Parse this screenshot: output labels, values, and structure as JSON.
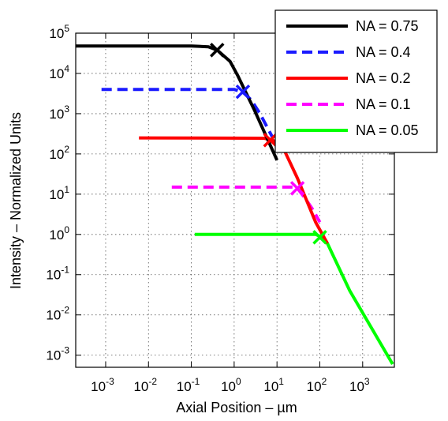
{
  "chart_data": {
    "type": "line",
    "xscale": "log",
    "yscale": "log",
    "xlabel": "Axial Position – µm",
    "ylabel": "Intensity – Normalized Units",
    "xlim": [
      0.0002,
      5500
    ],
    "ylim": [
      0.0005,
      100000
    ],
    "x_ticks": [
      {
        "base": "10",
        "exp": "-3",
        "value": 0.001
      },
      {
        "base": "10",
        "exp": "-2",
        "value": 0.01
      },
      {
        "base": "10",
        "exp": "-1",
        "value": 0.1
      },
      {
        "base": "10",
        "exp": "0",
        "value": 1
      },
      {
        "base": "10",
        "exp": "1",
        "value": 10
      },
      {
        "base": "10",
        "exp": "2",
        "value": 100
      },
      {
        "base": "10",
        "exp": "3",
        "value": 1000
      }
    ],
    "y_ticks": [
      {
        "base": "10",
        "exp": "-3",
        "value": 0.001
      },
      {
        "base": "10",
        "exp": "-2",
        "value": 0.01
      },
      {
        "base": "10",
        "exp": "-1",
        "value": 0.1
      },
      {
        "base": "10",
        "exp": "0",
        "value": 1
      },
      {
        "base": "10",
        "exp": "1",
        "value": 10
      },
      {
        "base": "10",
        "exp": "2",
        "value": 100
      },
      {
        "base": "10",
        "exp": "3",
        "value": 1000
      },
      {
        "base": "10",
        "exp": "4",
        "value": 10000
      },
      {
        "base": "10",
        "exp": "5",
        "value": 100000
      }
    ],
    "grid": true,
    "legend_position": "top-right",
    "series": [
      {
        "name": "NA = 0.75",
        "color": "#000000",
        "dash": "solid",
        "x": [
          0.0002,
          0.1,
          0.25,
          0.4,
          0.8,
          1.2,
          3,
          10
        ],
        "y": [
          48000,
          48000,
          46000,
          38000,
          20000,
          9000,
          1200,
          70
        ],
        "cross": [
          0.4,
          38000
        ]
      },
      {
        "name": "NA = 0.4",
        "color": "#1a1aff",
        "dash": "dashed",
        "x": [
          0.0008,
          1,
          1.6,
          2.5,
          4,
          8
        ],
        "y": [
          4000,
          4000,
          3400,
          2200,
          1000,
          250
        ],
        "cross": [
          1.6,
          3500
        ]
      },
      {
        "name": "NA = 0.2",
        "color": "#ff0000",
        "dash": "solid",
        "x": [
          0.006,
          5,
          8,
          15,
          30,
          80,
          150
        ],
        "y": [
          250,
          245,
          220,
          120,
          25,
          2,
          0.6
        ],
        "cross": [
          7,
          220
        ]
      },
      {
        "name": "NA = 0.1",
        "color": "#ff00ff",
        "dash": "dashed",
        "x": [
          0.035,
          25,
          30,
          45,
          70,
          100
        ],
        "y": [
          15,
          15,
          14,
          8,
          4,
          2
        ],
        "cross": [
          30,
          14
        ]
      },
      {
        "name": "NA = 0.05",
        "color": "#00ff00",
        "dash": "solid",
        "x": [
          0.12,
          80,
          100,
          150,
          500,
          5000
        ],
        "y": [
          1,
          1,
          0.9,
          0.6,
          0.04,
          0.0006
        ],
        "cross": [
          100,
          0.85
        ]
      }
    ]
  }
}
